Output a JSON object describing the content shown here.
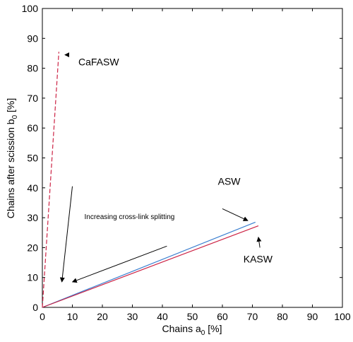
{
  "chart_data": {
    "type": "line",
    "title": "",
    "xlabel": "Chains a",
    "xlabel_sub": "0",
    "xlabel_unit": " [%]",
    "ylabel": "Chains after scission b",
    "ylabel_sub": "0",
    "ylabel_unit": " [%]",
    "xlim": [
      0,
      100
    ],
    "ylim": [
      0,
      100
    ],
    "xticks": [
      "0",
      "10",
      "20",
      "30",
      "40",
      "50",
      "60",
      "70",
      "80",
      "90",
      "100"
    ],
    "yticks": [
      "0",
      "10",
      "20",
      "30",
      "40",
      "50",
      "60",
      "70",
      "80",
      "90",
      "100"
    ],
    "grid": false,
    "series": [
      {
        "name": "CaFASW",
        "color": "#cc2244",
        "dash": "6,3",
        "x": [
          0,
          5.5
        ],
        "y": [
          0,
          85.5
        ]
      },
      {
        "name": "ASW",
        "color": "#3a7fd0",
        "dash": "",
        "x": [
          0,
          71
        ],
        "y": [
          0,
          28.5
        ]
      },
      {
        "name": "KASW",
        "color": "#cc2244",
        "dash": "",
        "x": [
          0,
          72
        ],
        "y": [
          0,
          27.3
        ]
      }
    ],
    "annotations": [
      {
        "id": "cafasw",
        "text": "CaFASW",
        "x": 12,
        "y": 81,
        "class": "annot"
      },
      {
        "id": "asw",
        "text": "ASW",
        "x": 58.5,
        "y": 41,
        "class": "annot"
      },
      {
        "id": "kasw",
        "text": "KASW",
        "x": 67,
        "y": 15,
        "class": "annot"
      },
      {
        "id": "crosslink",
        "text": "Increasing cross-link splitting",
        "x": 14,
        "y": 29.5,
        "class": "annot-small"
      }
    ],
    "arrows": [
      {
        "from": [
          10,
          40.5
        ],
        "to": [
          6.5,
          8.5
        ]
      },
      {
        "from": [
          41.5,
          20.5
        ],
        "to": [
          10,
          8.5
        ]
      },
      {
        "from": [
          8,
          84.5
        ],
        "to": [
          7.5,
          84.5
        ]
      },
      {
        "from": [
          60,
          33
        ],
        "to": [
          68.5,
          29
        ]
      },
      {
        "from": [
          72.5,
          20
        ],
        "to": [
          72,
          23.5
        ]
      }
    ]
  }
}
